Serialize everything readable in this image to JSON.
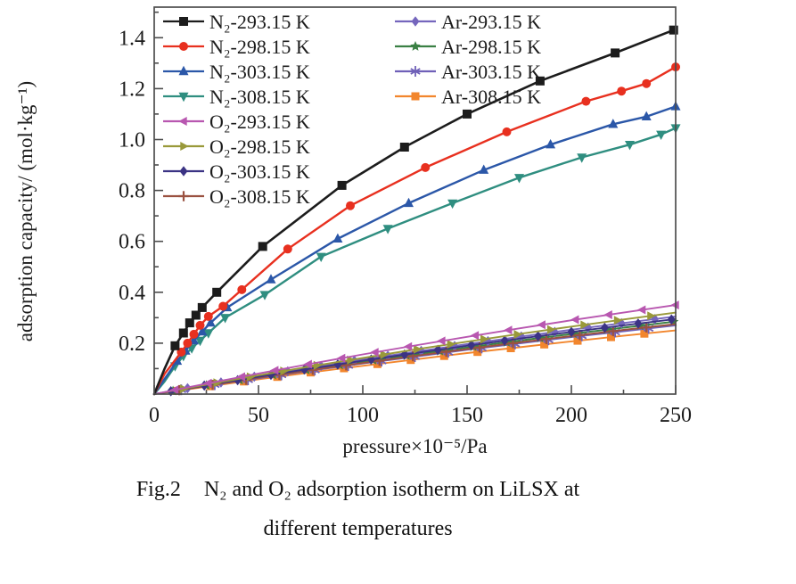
{
  "figure": {
    "caption": {
      "fig_label": "Fig.2",
      "line1": "N₂ and O₂ adsorption isotherm on LiLSX at",
      "line2": "different temperatures"
    }
  },
  "chart_data": {
    "type": "line",
    "title": "",
    "xlabel": "pressure×10⁻⁵/Pa",
    "ylabel": "adsorption capacity/ (mol·kg⁻¹)",
    "xlim": [
      0,
      250
    ],
    "ylim": [
      0,
      1.52
    ],
    "grid": false,
    "legend_position": "top-left inside plot, two columns, no frame",
    "x_ticks": [
      0,
      50,
      100,
      150,
      200,
      250
    ],
    "x_tick_labels": [
      "0",
      "50",
      "100",
      "150",
      "200",
      "250"
    ],
    "x_minor_ticks": [
      25,
      75,
      125,
      175,
      225
    ],
    "y_ticks": [
      0.2,
      0.4,
      0.6,
      0.8,
      1.0,
      1.2,
      1.4
    ],
    "y_tick_labels": [
      "0.2",
      "0.4",
      "0.6",
      "0.8",
      "1.0",
      "1.2",
      "1.4"
    ],
    "y_minor_ticks": [
      0.1,
      0.3,
      0.5,
      0.7,
      0.9,
      1.1,
      1.3,
      1.5
    ],
    "series": [
      {
        "id": "n2-293",
        "label": "N₂-293.15 K",
        "color": "#1c1c1c",
        "marker": "square",
        "lw": 2.6,
        "msize": 5,
        "legend_col": 0,
        "legend_row": 0,
        "markers": "points",
        "x": [
          0,
          5,
          10,
          14,
          17,
          20,
          23,
          30,
          52,
          90,
          120,
          150,
          185,
          221,
          249
        ],
        "y": [
          0,
          0.1,
          0.19,
          0.24,
          0.28,
          0.31,
          0.34,
          0.4,
          0.58,
          0.82,
          0.97,
          1.1,
          1.23,
          1.34,
          1.43
        ]
      },
      {
        "id": "n2-298",
        "label": "N₂-298.15 K",
        "color": "#e8301f",
        "marker": "circle",
        "lw": 2.4,
        "msize": 5,
        "legend_col": 0,
        "legend_row": 1,
        "markers": "points",
        "x": [
          0,
          5,
          13,
          16,
          19,
          22,
          26,
          33,
          42,
          64,
          94,
          130,
          169,
          207,
          224,
          236,
          250
        ],
        "y": [
          0,
          0.08,
          0.165,
          0.2,
          0.235,
          0.27,
          0.305,
          0.345,
          0.41,
          0.57,
          0.74,
          0.89,
          1.03,
          1.15,
          1.19,
          1.22,
          1.285
        ]
      },
      {
        "id": "n2-303",
        "label": "N₂-303.15 K",
        "color": "#2b57a8",
        "marker": "triangle-up",
        "lw": 2.4,
        "msize": 5,
        "legend_col": 0,
        "legend_row": 2,
        "markers": "points",
        "x": [
          0,
          5,
          11,
          15,
          19,
          23,
          27,
          35,
          56,
          88,
          122,
          158,
          190,
          220,
          236,
          250
        ],
        "y": [
          0,
          0.06,
          0.13,
          0.17,
          0.21,
          0.245,
          0.28,
          0.34,
          0.45,
          0.61,
          0.75,
          0.88,
          0.98,
          1.06,
          1.09,
          1.13
        ]
      },
      {
        "id": "n2-308",
        "label": "N₂-308.15 K",
        "color": "#2f8e80",
        "marker": "triangle-down",
        "lw": 2.4,
        "msize": 5,
        "legend_col": 0,
        "legend_row": 3,
        "markers": "points",
        "x": [
          0,
          5,
          10,
          14,
          18,
          22,
          26,
          34,
          53,
          80,
          112,
          143,
          175,
          205,
          228,
          243,
          250
        ],
        "y": [
          0,
          0.05,
          0.11,
          0.15,
          0.18,
          0.21,
          0.24,
          0.3,
          0.39,
          0.54,
          0.65,
          0.75,
          0.85,
          0.93,
          0.98,
          1.02,
          1.045
        ]
      },
      {
        "id": "o2-293",
        "label": "O₂-293.15 K",
        "color": "#b857b0",
        "marker": "triangle-left",
        "lw": 1.9,
        "msize": 4.5,
        "legend_col": 0,
        "legend_row": 4,
        "markers": "interval",
        "marker_start": 10,
        "marker_step": 16,
        "x": [
          0,
          25,
          50,
          75,
          100,
          125,
          150,
          175,
          200,
          225,
          250
        ],
        "y": [
          0,
          0.041,
          0.081,
          0.119,
          0.156,
          0.191,
          0.225,
          0.258,
          0.29,
          0.32,
          0.35
        ]
      },
      {
        "id": "o2-298",
        "label": "O₂-298.15 K",
        "color": "#99993a",
        "marker": "triangle-right",
        "lw": 1.9,
        "msize": 4.5,
        "legend_col": 0,
        "legend_row": 5,
        "markers": "interval",
        "marker_start": 14,
        "marker_step": 16,
        "x": [
          0,
          25,
          50,
          75,
          100,
          125,
          150,
          175,
          200,
          225,
          250
        ],
        "y": [
          0,
          0.037,
          0.074,
          0.109,
          0.142,
          0.175,
          0.206,
          0.236,
          0.265,
          0.293,
          0.32
        ]
      },
      {
        "id": "o2-303",
        "label": "O₂-303.15 K",
        "color": "#3b3384",
        "marker": "diamond",
        "lw": 1.9,
        "msize": 4.5,
        "legend_col": 0,
        "legend_row": 6,
        "markers": "interval",
        "marker_start": 8,
        "marker_step": 16,
        "x": [
          0,
          25,
          50,
          75,
          100,
          125,
          150,
          175,
          200,
          225,
          250
        ],
        "y": [
          0,
          0.035,
          0.068,
          0.1,
          0.131,
          0.161,
          0.19,
          0.218,
          0.244,
          0.27,
          0.295
        ]
      },
      {
        "id": "o2-308",
        "label": "O₂-308.15 K",
        "color": "#9a5140",
        "marker": "plus",
        "lw": 1.9,
        "msize": 4.5,
        "legend_col": 0,
        "legend_row": 7,
        "markers": "interval",
        "marker_start": 12,
        "marker_step": 16,
        "x": [
          0,
          25,
          50,
          75,
          100,
          125,
          150,
          175,
          200,
          225,
          250
        ],
        "y": [
          0,
          0.032,
          0.064,
          0.094,
          0.122,
          0.15,
          0.177,
          0.203,
          0.228,
          0.252,
          0.275
        ]
      },
      {
        "id": "ar-293",
        "label": "Ar-293.15 K",
        "color": "#7566bd",
        "marker": "diamond",
        "lw": 1.9,
        "msize": 4.5,
        "legend_col": 1,
        "legend_row": 0,
        "markers": "interval",
        "marker_start": 16,
        "marker_step": 16,
        "x": [
          0,
          25,
          50,
          75,
          100,
          125,
          150,
          175,
          200,
          225,
          250
        ],
        "y": [
          0,
          0.036,
          0.071,
          0.104,
          0.136,
          0.166,
          0.196,
          0.225,
          0.253,
          0.279,
          0.305
        ]
      },
      {
        "id": "ar-298",
        "label": "Ar-298.15 K",
        "color": "#3a8044",
        "marker": "star",
        "lw": 1.9,
        "msize": 4.5,
        "legend_col": 1,
        "legend_row": 1,
        "markers": "interval",
        "marker_start": 9,
        "marker_step": 16,
        "x": [
          0,
          25,
          50,
          75,
          100,
          125,
          150,
          175,
          200,
          225,
          250
        ],
        "y": [
          0,
          0.034,
          0.066,
          0.097,
          0.127,
          0.156,
          0.183,
          0.21,
          0.236,
          0.261,
          0.285
        ]
      },
      {
        "id": "ar-303",
        "label": "Ar-303.15 K",
        "color": "#6f60b8",
        "marker": "asterisk",
        "lw": 1.9,
        "msize": 4.5,
        "legend_col": 1,
        "legend_row": 2,
        "markers": "interval",
        "marker_start": 13,
        "marker_step": 16,
        "x": [
          0,
          25,
          50,
          75,
          100,
          125,
          150,
          175,
          200,
          225,
          250
        ],
        "y": [
          0,
          0.032,
          0.062,
          0.092,
          0.12,
          0.147,
          0.174,
          0.199,
          0.224,
          0.247,
          0.27
        ]
      },
      {
        "id": "ar-308",
        "label": "Ar-308.15 K",
        "color": "#f2862d",
        "marker": "square",
        "lw": 1.9,
        "msize": 4.5,
        "legend_col": 1,
        "legend_row": 3,
        "markers": "interval",
        "marker_start": 11,
        "marker_step": 16,
        "x": [
          0,
          25,
          50,
          75,
          100,
          125,
          150,
          175,
          200,
          225,
          250
        ],
        "y": [
          0,
          0.029,
          0.058,
          0.085,
          0.111,
          0.136,
          0.161,
          0.184,
          0.207,
          0.229,
          0.25
        ]
      }
    ]
  }
}
